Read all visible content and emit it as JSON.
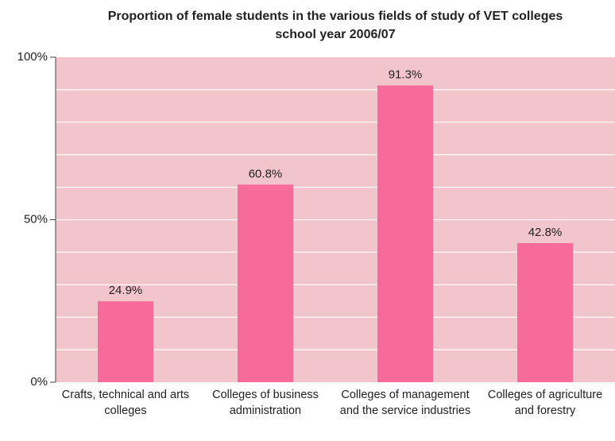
{
  "chart_data": {
    "type": "bar",
    "title": "Proportion of female students in the various fields of study  of VET colleges",
    "subtitle": "school year 2006/07",
    "categories": [
      "Crafts, technical and arts colleges",
      "Colleges of business administration",
      "Colleges of management and the service industries",
      "Colleges of agriculture and forestry"
    ],
    "values": [
      24.9,
      60.8,
      91.3,
      42.8
    ],
    "value_labels": [
      "24.9%",
      "60.8%",
      "91.3%",
      "42.8%"
    ],
    "color": "#f76b9b",
    "background": "#f2c4cc",
    "ylim": [
      0,
      100
    ],
    "yticks": [
      {
        "value": 0,
        "label": "0%"
      },
      {
        "value": 50,
        "label": "50%"
      },
      {
        "value": 100,
        "label": "100%"
      }
    ],
    "ygrid": [
      10,
      20,
      30,
      40,
      50,
      60,
      70,
      80,
      90
    ],
    "grid": true
  }
}
